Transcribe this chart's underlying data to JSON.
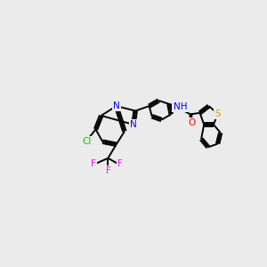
{
  "bg_color": "#ebebeb",
  "bond_color": "#000000",
  "atom_colors": {
    "N": "#0000ff",
    "O": "#ff0000",
    "S": "#ccaa00",
    "Cl": "#00cc00",
    "F": "#ff00ff",
    "C": "#000000"
  }
}
